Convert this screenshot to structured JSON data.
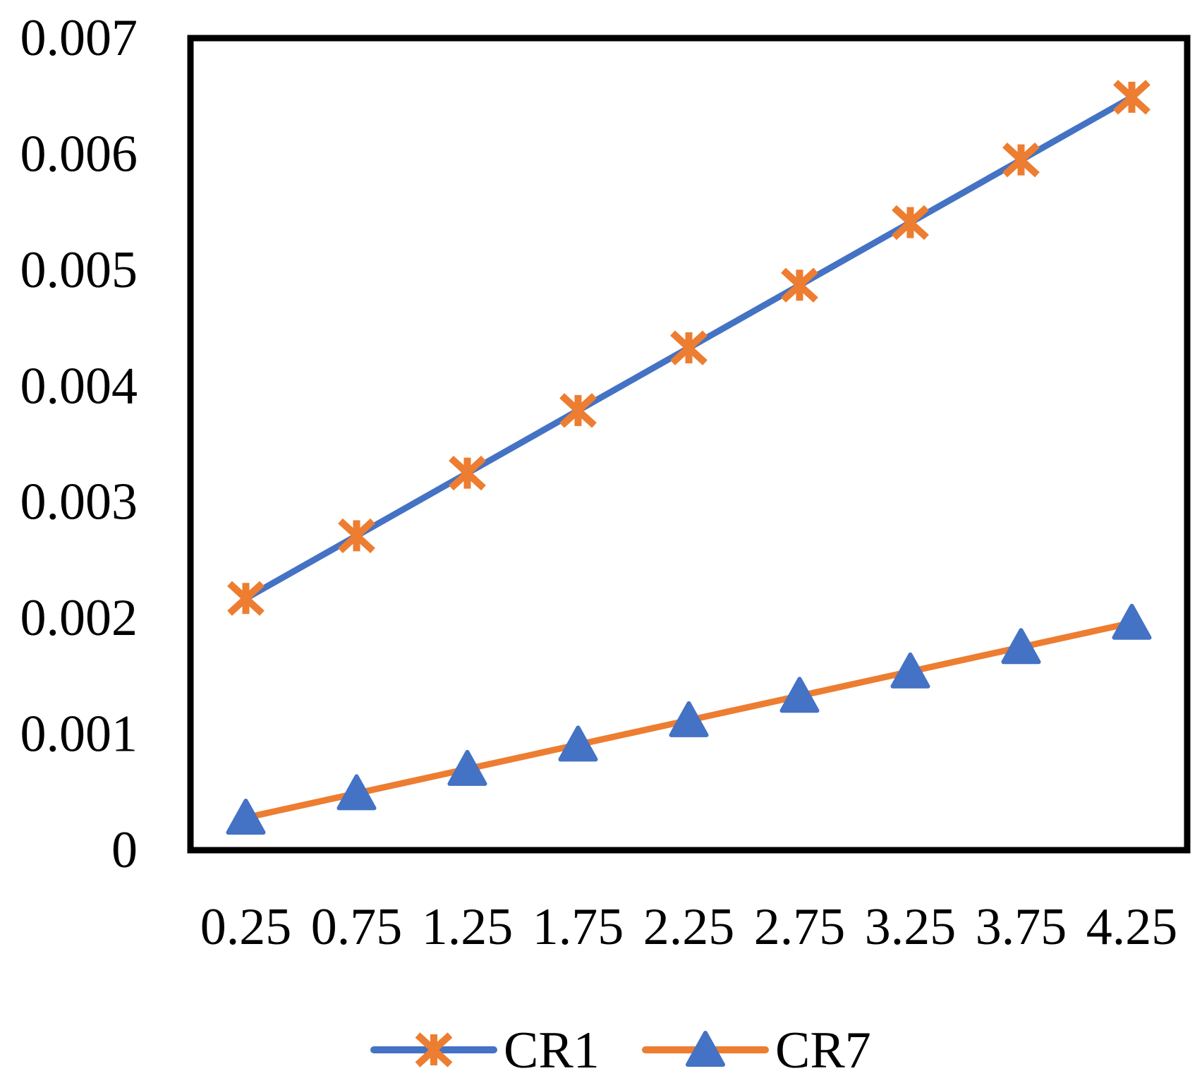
{
  "chart_data": {
    "type": "line",
    "title": "",
    "xlabel": "",
    "ylabel": "",
    "grid": "off",
    "legend_position": "bottom",
    "categories": [
      "0.25",
      "0.75",
      "1.25",
      "1.75",
      "2.25",
      "2.75",
      "3.25",
      "3.75",
      "4.25"
    ],
    "series": [
      {
        "name": "CR1",
        "line_color": "#4472C4",
        "marker": "asterisk",
        "marker_color": "#ED7D31",
        "values": [
          0.00217,
          0.00271,
          0.00325,
          0.00379,
          0.00433,
          0.00487,
          0.00541,
          0.00595,
          0.00649
        ]
      },
      {
        "name": "CR7",
        "line_color": "#ED7D31",
        "marker": "triangle",
        "marker_color": "#4472C4",
        "values": [
          0.00028,
          0.00049,
          0.0007,
          0.00091,
          0.00112,
          0.00133,
          0.00154,
          0.00175,
          0.00196
        ]
      }
    ],
    "y_ticks": [
      "0",
      "0.001",
      "0.002",
      "0.003",
      "0.004",
      "0.005",
      "0.006",
      "0.007"
    ],
    "ylim": [
      0,
      0.007
    ],
    "axis_color": "#000000",
    "background_color": "#FFFFFF",
    "text_color": "#000000"
  }
}
